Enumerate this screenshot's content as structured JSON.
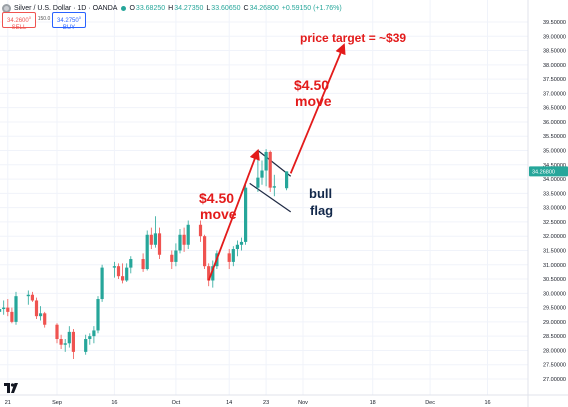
{
  "header": {
    "instrument": "Silver / U.S. Dollar · 1D · OANDA",
    "ohlc": [
      {
        "key": "O",
        "value": "33.68250"
      },
      {
        "key": "H",
        "value": "34.27350"
      },
      {
        "key": "L",
        "value": "33.60650"
      },
      {
        "key": "C",
        "value": "34.26800"
      }
    ],
    "change": "+0.59150 (+1.76%)",
    "sell_price": "34.2600",
    "sell_sup": "0",
    "sell_label": "SELL",
    "spread": "150.0",
    "buy_price": "34.2750",
    "buy_sup": "0",
    "buy_label": "BUY"
  },
  "colors": {
    "up": "#26a69a",
    "down": "#ef5350",
    "annotation_red": "#e31b1b",
    "annotation_navy": "#13294b",
    "flag_lines": "#1f2a44"
  },
  "icons": {
    "logo": "tradingview-logo-icon",
    "flag": "silver-flag-icon"
  },
  "annotations": {
    "move1_line1": "$4.50",
    "move1_line2": "move",
    "move2_line1": "$4.50",
    "move2_line2": "move",
    "bull_line1": "bull",
    "bull_line2": "flag",
    "target": "price target = ~$39"
  },
  "chart_data": {
    "type": "candlestick",
    "ylim": [
      26.7,
      39.55
    ],
    "y_ticks": [
      "39.50000",
      "39.00000",
      "38.50000",
      "38.00000",
      "37.50000",
      "37.00000",
      "36.50000",
      "36.00000",
      "35.50000",
      "35.00000",
      "34.50000",
      "34.00000",
      "33.50000",
      "33.00000",
      "32.50000",
      "32.00000",
      "31.50000",
      "31.00000",
      "30.50000",
      "30.00000",
      "29.50000",
      "29.00000",
      "28.50000",
      "28.00000",
      "27.50000",
      "27.00000"
    ],
    "x_ticks": [
      {
        "label": "21",
        "date": "2024-08-21"
      },
      {
        "label": "Sep",
        "date": "2024-09-02"
      },
      {
        "label": "16",
        "date": "2024-09-16"
      },
      {
        "label": "Oct",
        "date": "2024-10-01"
      },
      {
        "label": "14",
        "date": "2024-10-14"
      },
      {
        "label": "23",
        "date": "2024-10-23"
      },
      {
        "label": "Nov",
        "date": "2024-11-01"
      },
      {
        "label": "18",
        "date": "2024-11-18"
      },
      {
        "label": "Dec",
        "date": "2024-12-02"
      },
      {
        "label": "16",
        "date": "2024-12-16"
      }
    ],
    "current_price": "34.26800",
    "current_price_date": "2024-10-28",
    "candles": [
      {
        "date": "2024-08-19",
        "o": 29.35,
        "h": 29.7,
        "l": 29.15,
        "c": 29.45
      },
      {
        "date": "2024-08-20",
        "o": 29.45,
        "h": 29.75,
        "l": 29.25,
        "c": 29.5
      },
      {
        "date": "2024-08-21",
        "o": 29.5,
        "h": 29.8,
        "l": 29.2,
        "c": 29.35
      },
      {
        "date": "2024-08-22",
        "o": 29.35,
        "h": 29.5,
        "l": 28.95,
        "c": 29.0
      },
      {
        "date": "2024-08-23",
        "o": 29.0,
        "h": 30.05,
        "l": 28.9,
        "c": 29.9
      },
      {
        "date": "2024-08-26",
        "o": 29.9,
        "h": 30.1,
        "l": 29.6,
        "c": 29.95
      },
      {
        "date": "2024-08-27",
        "o": 29.95,
        "h": 30.05,
        "l": 29.7,
        "c": 29.75
      },
      {
        "date": "2024-08-28",
        "o": 29.75,
        "h": 29.85,
        "l": 29.1,
        "c": 29.2
      },
      {
        "date": "2024-08-29",
        "o": 29.2,
        "h": 29.55,
        "l": 29.05,
        "c": 29.3
      },
      {
        "date": "2024-08-30",
        "o": 29.3,
        "h": 29.35,
        "l": 28.8,
        "c": 28.9
      },
      {
        "date": "2024-09-02",
        "o": 28.9,
        "h": 28.95,
        "l": 28.25,
        "c": 28.4
      },
      {
        "date": "2024-09-03",
        "o": 28.4,
        "h": 28.55,
        "l": 28.05,
        "c": 28.2
      },
      {
        "date": "2024-09-04",
        "o": 28.2,
        "h": 28.4,
        "l": 27.95,
        "c": 28.25
      },
      {
        "date": "2024-09-05",
        "o": 28.25,
        "h": 28.85,
        "l": 28.1,
        "c": 28.65
      },
      {
        "date": "2024-09-06",
        "o": 28.65,
        "h": 28.75,
        "l": 27.7,
        "c": 27.95
      },
      {
        "date": "2024-09-09",
        "o": 27.95,
        "h": 28.55,
        "l": 27.85,
        "c": 28.4
      },
      {
        "date": "2024-09-10",
        "o": 28.4,
        "h": 28.6,
        "l": 28.2,
        "c": 28.5
      },
      {
        "date": "2024-09-11",
        "o": 28.5,
        "h": 28.85,
        "l": 28.25,
        "c": 28.7
      },
      {
        "date": "2024-09-12",
        "o": 28.7,
        "h": 29.9,
        "l": 28.6,
        "c": 29.8
      },
      {
        "date": "2024-09-13",
        "o": 29.8,
        "h": 31.0,
        "l": 29.7,
        "c": 30.9
      },
      {
        "date": "2024-09-16",
        "o": 30.9,
        "h": 31.1,
        "l": 30.55,
        "c": 30.95
      },
      {
        "date": "2024-09-17",
        "o": 30.95,
        "h": 31.05,
        "l": 30.5,
        "c": 30.6
      },
      {
        "date": "2024-09-18",
        "o": 30.6,
        "h": 31.05,
        "l": 30.35,
        "c": 30.45
      },
      {
        "date": "2024-09-19",
        "o": 30.45,
        "h": 31.05,
        "l": 30.4,
        "c": 30.9
      },
      {
        "date": "2024-09-20",
        "o": 30.9,
        "h": 31.3,
        "l": 30.7,
        "c": 31.2
      },
      {
        "date": "2024-09-23",
        "o": 31.2,
        "h": 31.4,
        "l": 30.75,
        "c": 30.85
      },
      {
        "date": "2024-09-24",
        "o": 30.85,
        "h": 32.2,
        "l": 30.8,
        "c": 32.05
      },
      {
        "date": "2024-09-25",
        "o": 32.05,
        "h": 32.3,
        "l": 31.55,
        "c": 31.7
      },
      {
        "date": "2024-09-26",
        "o": 31.7,
        "h": 32.7,
        "l": 31.6,
        "c": 32.1
      },
      {
        "date": "2024-09-27",
        "o": 32.1,
        "h": 32.3,
        "l": 31.2,
        "c": 31.35
      },
      {
        "date": "2024-09-30",
        "o": 31.35,
        "h": 31.5,
        "l": 30.85,
        "c": 31.1
      },
      {
        "date": "2024-10-01",
        "o": 31.1,
        "h": 31.75,
        "l": 30.95,
        "c": 31.5
      },
      {
        "date": "2024-10-02",
        "o": 31.5,
        "h": 32.25,
        "l": 31.4,
        "c": 32.05
      },
      {
        "date": "2024-10-03",
        "o": 32.05,
        "h": 32.3,
        "l": 31.45,
        "c": 31.7
      },
      {
        "date": "2024-10-04",
        "o": 31.7,
        "h": 32.55,
        "l": 31.55,
        "c": 32.4
      },
      {
        "date": "2024-10-07",
        "o": 32.4,
        "h": 32.55,
        "l": 31.8,
        "c": 32.0
      },
      {
        "date": "2024-10-08",
        "o": 32.0,
        "h": 32.05,
        "l": 30.85,
        "c": 30.95
      },
      {
        "date": "2024-10-09",
        "o": 30.95,
        "h": 31.05,
        "l": 30.25,
        "c": 30.45
      },
      {
        "date": "2024-10-10",
        "o": 30.45,
        "h": 31.15,
        "l": 30.2,
        "c": 30.95
      },
      {
        "date": "2024-10-11",
        "o": 30.95,
        "h": 31.5,
        "l": 30.85,
        "c": 31.4
      },
      {
        "date": "2024-10-14",
        "o": 31.4,
        "h": 31.55,
        "l": 30.85,
        "c": 31.1
      },
      {
        "date": "2024-10-15",
        "o": 31.1,
        "h": 31.65,
        "l": 30.95,
        "c": 31.55
      },
      {
        "date": "2024-10-16",
        "o": 31.55,
        "h": 31.85,
        "l": 31.3,
        "c": 31.7
      },
      {
        "date": "2024-10-17",
        "o": 31.7,
        "h": 31.95,
        "l": 31.5,
        "c": 31.8
      },
      {
        "date": "2024-10-18",
        "o": 31.8,
        "h": 33.8,
        "l": 31.7,
        "c": 33.7
      },
      {
        "date": "2024-10-21",
        "o": 33.7,
        "h": 34.85,
        "l": 33.55,
        "c": 34.05
      },
      {
        "date": "2024-10-22",
        "o": 34.05,
        "h": 34.65,
        "l": 33.8,
        "c": 34.3
      },
      {
        "date": "2024-10-23",
        "o": 34.3,
        "h": 35.05,
        "l": 33.75,
        "c": 34.95
      },
      {
        "date": "2024-10-24",
        "o": 34.95,
        "h": 35.0,
        "l": 33.55,
        "c": 33.7
      },
      {
        "date": "2024-10-25",
        "o": 33.7,
        "h": 34.15,
        "l": 33.4,
        "c": 33.75
      },
      {
        "date": "2024-10-28",
        "o": 33.68,
        "h": 34.27,
        "l": 33.61,
        "c": 34.27
      }
    ],
    "flag_channel": {
      "upper": [
        {
          "date": "2024-10-21",
          "y": 35.0
        },
        {
          "date": "2024-10-29",
          "y": 34.1
        }
      ],
      "lower": [
        {
          "date": "2024-10-19",
          "y": 33.85
        },
        {
          "date": "2024-10-29",
          "y": 32.85
        }
      ]
    },
    "arrows": [
      {
        "label": "first $4.50 move",
        "from": {
          "date": "2024-10-09",
          "y": 30.45
        },
        "to": {
          "date": "2024-10-21",
          "y": 35.0
        }
      },
      {
        "label": "second $4.50 move",
        "from": {
          "date": "2024-10-29",
          "y": 34.2
        },
        "to": {
          "date": "2024-11-11",
          "y": 38.7
        }
      }
    ]
  }
}
